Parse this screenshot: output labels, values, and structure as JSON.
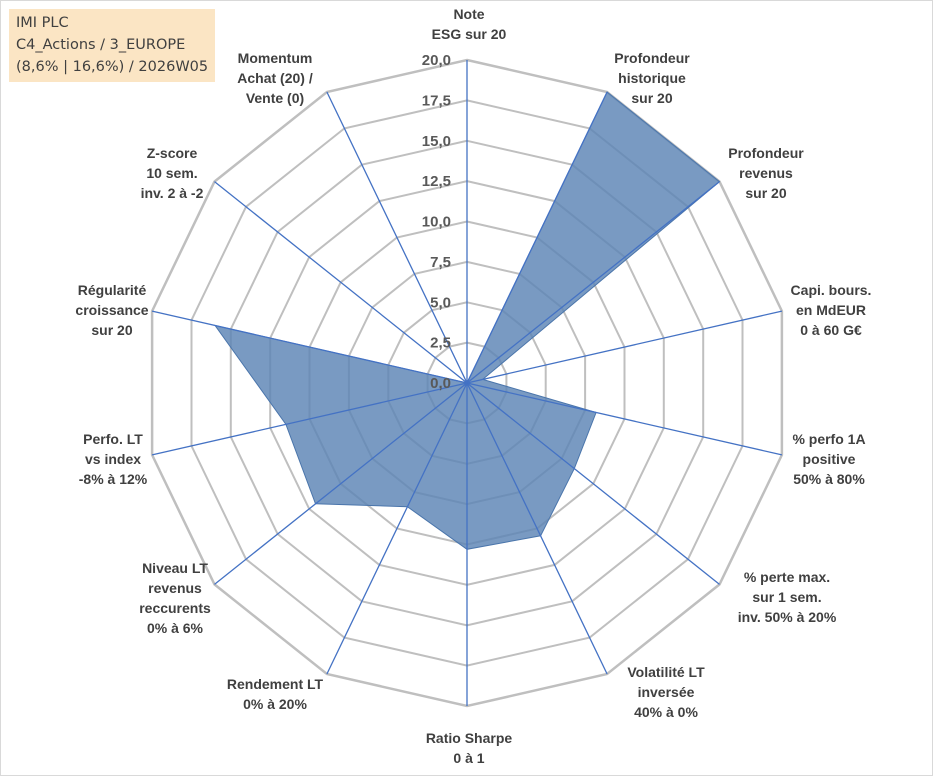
{
  "title_box": {
    "line1": "IMI PLC",
    "line2": "C4_Actions / 3_EUROPE",
    "line3": "(8,6% | 16,6%) / 2026W05"
  },
  "chart_data": {
    "type": "radar",
    "rmin": 0,
    "rmax": 20,
    "tick_labels": [
      "0,0",
      "2,5",
      "5,0",
      "7,5",
      "10,0",
      "12,5",
      "15,0",
      "17,5",
      "20,0"
    ],
    "axes": [
      {
        "label": [
          "Note",
          "ESG sur 20"
        ],
        "value": 0.0
      },
      {
        "label": [
          "Profondeur",
          "historique",
          "sur 20"
        ],
        "value": 20.0
      },
      {
        "label": [
          "Profondeur",
          "revenus",
          "sur 20"
        ],
        "value": 20.0
      },
      {
        "label": [
          "Capi. bours.",
          "en MdEUR",
          "0 à 60 G€"
        ],
        "value": 1.0
      },
      {
        "label": [
          "% perfo 1A",
          "positive",
          "50% à 80%"
        ],
        "value": 8.2
      },
      {
        "label": [
          "% perte max.",
          "sur 1 sem.",
          "inv. 50% à 20%"
        ],
        "value": 8.5
      },
      {
        "label": [
          "Volatilité LT",
          "inversée",
          "40% à 0%"
        ],
        "value": 10.5
      },
      {
        "label": [
          "Ratio Sharpe",
          "0 à 1"
        ],
        "value": 10.3
      },
      {
        "label": [
          "Rendement LT",
          "0% à 20%"
        ],
        "value": 8.5
      },
      {
        "label": [
          "Niveau LT",
          "revenus",
          "reccurents",
          "0% à 6%"
        ],
        "value": 12.0
      },
      {
        "label": [
          "Perfo. LT",
          "vs index",
          "-8% à 12%"
        ],
        "value": 11.5
      },
      {
        "label": [
          "Régularité",
          "croissance",
          "sur 20"
        ],
        "value": 16.0
      },
      {
        "label": [
          "Z-score",
          "10 sem.",
          "inv. 2 à -2"
        ],
        "value": 0.0
      },
      {
        "label": [
          "Momentum",
          "Achat (20) /",
          "Vente (0)"
        ],
        "value": 0.0
      }
    ],
    "grid": true,
    "fill_color": "#5b84b4",
    "grid_color": "#bfbfbf",
    "axis_color": "#4472c4"
  }
}
